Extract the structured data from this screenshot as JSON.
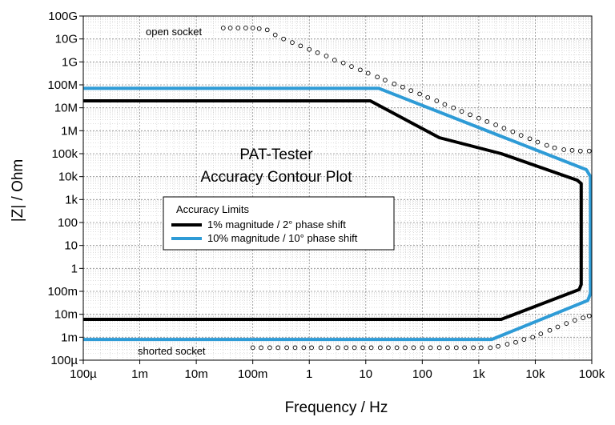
{
  "chart_data": {
    "type": "line",
    "title_line1": "PAT-Tester",
    "title_line2": "Accuracy Contour Plot",
    "xlabel": "Frequency / Hz",
    "ylabel": "|Z| / Ohm",
    "x_scale": "log",
    "y_scale": "log",
    "xlim": [
      0.0001,
      100000
    ],
    "ylim": [
      0.0001,
      100000000000
    ],
    "grid": true,
    "x_tick_values": [
      0.0001,
      0.001,
      0.01,
      0.1,
      1,
      10,
      100,
      1000,
      10000,
      100000
    ],
    "x_tick_labels": [
      "100µ",
      "1m",
      "10m",
      "100m",
      "1",
      "10",
      "100",
      "1k",
      "10k",
      "100k"
    ],
    "y_tick_values": [
      0.0001,
      0.001,
      0.01,
      0.1,
      1,
      10,
      100,
      1000,
      10000,
      100000,
      1000000,
      10000000,
      100000000,
      1000000000,
      10000000000,
      100000000000
    ],
    "y_tick_labels": [
      "100µ",
      "1m",
      "10m",
      "100m",
      "1",
      "10",
      "100",
      "1k",
      "10k",
      "100k",
      "1M",
      "10M",
      "100M",
      "1G",
      "10G",
      "100G"
    ],
    "legend_title": "Accuracy Limits",
    "legend_position": "center-left",
    "series": [
      {
        "name": "1% magnitude / 2° phase shift",
        "color": "#000000",
        "x": [
          0.0001,
          12,
          200,
          2500,
          55000,
          65000,
          65000,
          60000,
          2500,
          0.0001
        ],
        "y": [
          20000000,
          20000000,
          500000,
          100000,
          7000,
          5000,
          0.2,
          0.12,
          0.006,
          0.006
        ]
      },
      {
        "name": "10% magnitude / 10° phase shift",
        "color": "#2E9BD6",
        "x": [
          0.0001,
          17,
          80000,
          95000,
          95000,
          85000,
          1700,
          0.0001
        ],
        "y": [
          70000000,
          70000000,
          20000,
          10000,
          0.08,
          0.04,
          0.0008,
          0.0008
        ]
      },
      {
        "name": "open socket",
        "style": "dotted-circles",
        "color": "#000000",
        "x": [
          0.03,
          0.04,
          0.055,
          0.075,
          0.1,
          0.13,
          0.18,
          0.25,
          0.35,
          0.5,
          0.7,
          1,
          1.4,
          2,
          2.8,
          4,
          5.6,
          8,
          11,
          16,
          22,
          32,
          45,
          63,
          90,
          125,
          180,
          250,
          355,
          500,
          700,
          1000,
          1400,
          2000,
          2800,
          4000,
          5600,
          8000,
          11000,
          16000,
          22000,
          32000,
          45000,
          63000,
          90000
        ],
        "y": [
          30000000000,
          30000000000,
          30000000000,
          30000000000,
          30000000000,
          28000000000,
          25000000000,
          15000000000,
          10000000000,
          7000000000,
          5000000000,
          3500000000,
          2500000000,
          1800000000,
          1200000000,
          900000000,
          630000000,
          450000000,
          320000000,
          220000000,
          160000000,
          110000000,
          80000000,
          56000000,
          40000000,
          28000000,
          20000000,
          14000000,
          10000000,
          7000000,
          5000000,
          3500000,
          2500000,
          1800000,
          1300000,
          900000,
          630000,
          450000,
          320000,
          230000,
          180000,
          150000,
          140000,
          130000,
          130000
        ],
        "label": "open socket"
      },
      {
        "name": "shorted socket",
        "style": "dotted-circles",
        "color": "#000000",
        "x": [
          0.1,
          0.14,
          0.2,
          0.28,
          0.4,
          0.56,
          0.8,
          1.1,
          1.6,
          2.2,
          3.2,
          4.5,
          6.3,
          9,
          12.5,
          18,
          25,
          35.5,
          50,
          70,
          100,
          140,
          200,
          280,
          400,
          560,
          800,
          1100,
          1600,
          2200,
          3200,
          4500,
          6300,
          9000,
          12500,
          18000,
          25000,
          35500,
          50000,
          70000,
          90000
        ],
        "y": [
          0.00035,
          0.00035,
          0.00035,
          0.00035,
          0.00035,
          0.00035,
          0.00035,
          0.00035,
          0.00035,
          0.00035,
          0.00035,
          0.00035,
          0.00035,
          0.00035,
          0.00035,
          0.00035,
          0.00035,
          0.00035,
          0.00035,
          0.00035,
          0.00035,
          0.00035,
          0.00035,
          0.00035,
          0.00035,
          0.00035,
          0.00035,
          0.00035,
          0.00035,
          0.0004,
          0.0005,
          0.0006,
          0.0008,
          0.001,
          0.0014,
          0.002,
          0.0028,
          0.004,
          0.0055,
          0.007,
          0.0085
        ],
        "label": "shorted socket"
      }
    ]
  }
}
